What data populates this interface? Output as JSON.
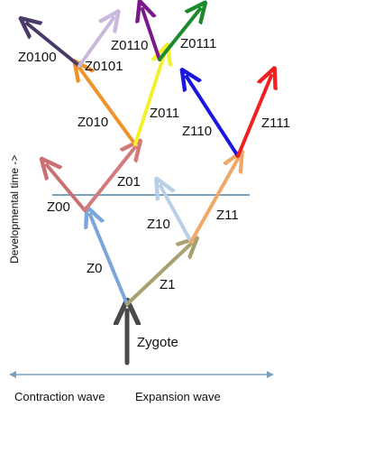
{
  "labels": {
    "zygote": "Zygote",
    "z0": "Z0",
    "z1": "Z1",
    "z00": "Z00",
    "z01": "Z01",
    "z10": "Z10",
    "z11": "Z11",
    "z010": "Z010",
    "z011": "Z011",
    "z110": "Z110",
    "z111": "Z111",
    "z0100": "Z0100",
    "z0101": "Z0101",
    "z0110": "Z0110",
    "z0111": "Z0111"
  },
  "axis": {
    "time_label": "Developmental time ->"
  },
  "waves": {
    "contraction": "Contraction wave",
    "expansion": "Expansion wave"
  },
  "colors": {
    "zygote": "#4a4a4a",
    "z0": "#7aa6dc",
    "z1": "#a8a070",
    "z00": "#c97070",
    "z000": "#b05a5a",
    "z01": "#d47a7a",
    "z10": "#b9cfe6",
    "z11": "#f0a868",
    "z010": "#f0922a",
    "z011": "#f4f030",
    "z110": "#1a16e0",
    "z111": "#f02020",
    "z0100": "#4a3a6a",
    "z0101": "#c8b8dc",
    "z0110": "#7a1a8a",
    "z0111": "#1a8a2a",
    "wave_line": "#7aa0c0"
  }
}
